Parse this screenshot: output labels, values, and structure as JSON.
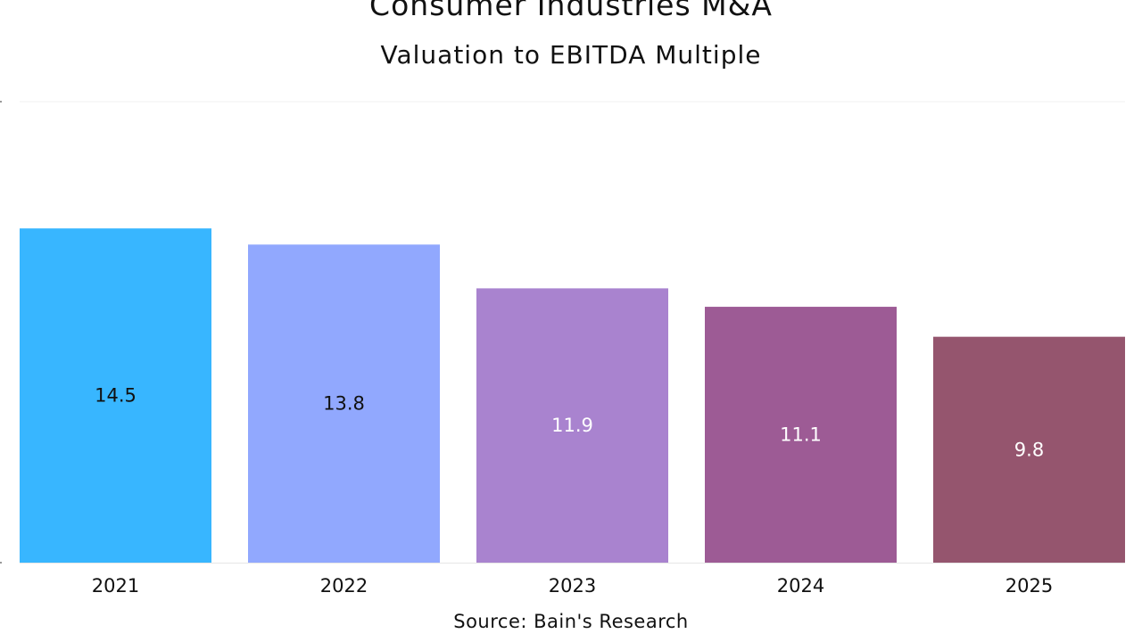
{
  "chart_data": {
    "type": "bar",
    "title": "Consumer Industries M&A",
    "subtitle": "Valuation to EBITDA Multiple",
    "source": "Source: Bain's Research",
    "categories": [
      "2021",
      "2022",
      "2023",
      "2024",
      "2025"
    ],
    "values": [
      14.5,
      13.8,
      11.9,
      11.1,
      9.8
    ],
    "value_labels": [
      "14.5",
      "13.8",
      "11.9",
      "11.1",
      "9.8"
    ],
    "colors": [
      "#38b6ff",
      "#91a8fe",
      "#a983cf",
      "#9d5b95",
      "#95556e"
    ],
    "label_colors": [
      "#111111",
      "#111111",
      "#ffffff",
      "#ffffff",
      "#ffffff"
    ],
    "xlabel": "",
    "ylabel": "",
    "ylim": [
      0,
      20
    ],
    "grid": true,
    "legend": "none"
  }
}
